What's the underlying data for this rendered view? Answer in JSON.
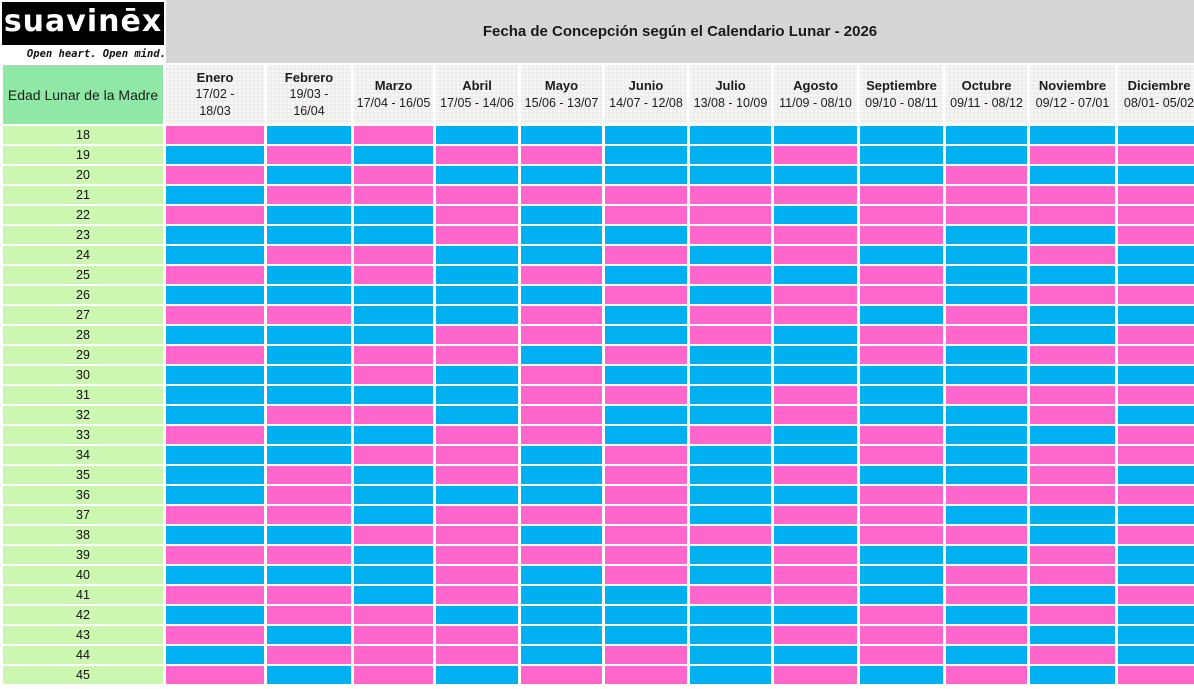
{
  "brand": {
    "logo_text": "suavinēx",
    "tagline": "Open heart. Open mind."
  },
  "title": "Fecha de Concepción según el Calendario Lunar - 2026",
  "table": {
    "row_header_label": "Edad Lunar de la Madre",
    "months": [
      {
        "name": "Enero",
        "range": "17/02 -\n18/03"
      },
      {
        "name": "Febrero",
        "range": "19/03 -\n16/04"
      },
      {
        "name": "Marzo",
        "range": "17/04 - 16/05"
      },
      {
        "name": "Abril",
        "range": "17/05 - 14/06"
      },
      {
        "name": "Mayo",
        "range": "15/06 - 13/07"
      },
      {
        "name": "Junio",
        "range": "14/07 - 12/08"
      },
      {
        "name": "Julio",
        "range": "13/08 - 10/09"
      },
      {
        "name": "Agosto",
        "range": "11/09 - 08/10"
      },
      {
        "name": "Septiembre",
        "range": "09/10 - 08/11"
      },
      {
        "name": "Octubre",
        "range": "09/11 - 08/12"
      },
      {
        "name": "Noviembre",
        "range": "09/12 - 07/01"
      },
      {
        "name": "Diciembre",
        "range": "08/01- 05/02"
      }
    ],
    "ages": [
      18,
      19,
      20,
      21,
      22,
      23,
      24,
      25,
      26,
      27,
      28,
      29,
      30,
      31,
      32,
      33,
      34,
      35,
      36,
      37,
      38,
      39,
      40,
      41,
      42,
      43,
      44,
      45
    ],
    "cell_colors": {
      "G": "#FF66CC",
      "B": "#00B0F0"
    },
    "grid": [
      "GBGBBBBBBBBB",
      "BGBGGBBGBBGG",
      "GBGBBBBBBGBB",
      "BGGGGGGGGGGG",
      "GBBGBGGBGGGG",
      "BBBGBBGGGBBG",
      "BGGBBGBGBBGB",
      "GBGBGBGBGBBB",
      "BBBBBGBGGBGG",
      "GGBBGBGGBGBB",
      "BBBGGBGBGGBG",
      "GBGGBGBBGBGG",
      "BBGBGBBBBBBB",
      "BBBBGGBGBGGG",
      "BGGBGBBGBBGB",
      "GBBGGBGBGBBG",
      "BBGGBGBBGBGG",
      "BGBGBGBGBBGB",
      "BGBBBGBBGGGG",
      "GGBGGGBGGBBB",
      "BBGGBGGBGGBG",
      "GGBGGGBGBBGB",
      "BBBGBGBGBGGB",
      "GGBGBBGGBGBG",
      "BGGBBBBBGBGB",
      "GBGGBBBGGGBB",
      "BGGGBGBBGBGB",
      "GBGBGGBGBGBG"
    ]
  },
  "colors": {
    "title_bar": "#D6D6D6",
    "header_green": "#8FE8A6",
    "age_green": "#CBF7B0",
    "month_header_gray": "#EFEEEC",
    "logo_bg": "#000000",
    "logo_fg": "#FFFFFF"
  }
}
